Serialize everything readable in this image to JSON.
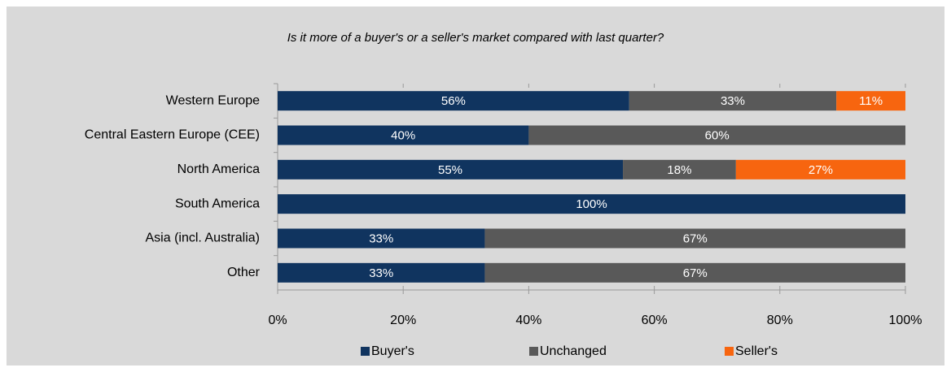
{
  "chart_data": {
    "type": "stacked_barh",
    "title": "Is it more of a buyer's or a seller's market compared with last quarter?",
    "categories": [
      "Western Europe",
      "Central Eastern Europe (CEE)",
      "North America",
      "South America",
      "Asia (incl. Australia)",
      "Other"
    ],
    "series": [
      {
        "name": "Buyer's",
        "color": "#10345f",
        "values": [
          56,
          40,
          55,
          100,
          33,
          33
        ],
        "value_labels": [
          "56%",
          "40%",
          "55%",
          "100%",
          "33%",
          "33%"
        ]
      },
      {
        "name": "Unchanged",
        "color": "#595959",
        "values": [
          33,
          60,
          18,
          0,
          67,
          67
        ],
        "value_labels": [
          "33%",
          "60%",
          "18%",
          null,
          "67%",
          "67%"
        ]
      },
      {
        "name": "Seller's",
        "color": "#f7650f",
        "values": [
          11,
          0,
          27,
          0,
          0,
          0
        ],
        "value_labels": [
          "11%",
          null,
          "27%",
          null,
          null,
          null
        ]
      }
    ],
    "xlim": [
      0,
      100
    ],
    "xticks": [
      {
        "value": 0,
        "label": "0%"
      },
      {
        "value": 20,
        "label": "20%"
      },
      {
        "value": 40,
        "label": "40%"
      },
      {
        "value": 60,
        "label": "60%"
      },
      {
        "value": 80,
        "label": "80%"
      },
      {
        "value": 100,
        "label": "100%"
      }
    ],
    "legend": "bottom"
  }
}
